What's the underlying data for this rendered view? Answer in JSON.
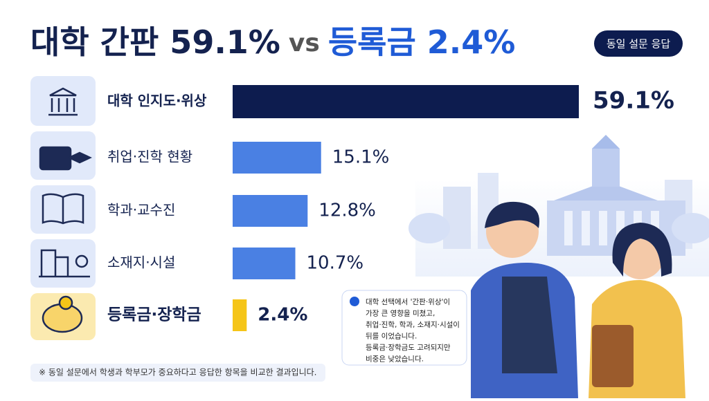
{
  "chart_data": {
    "type": "hbar",
    "title": [
      "대학 간판 59.1%",
      "vs",
      "등록금 2.4%"
    ],
    "badge": "동일 설문 응답",
    "categories": [
      "대학 인지도·위상",
      "취업·진학 현황",
      "학과·교수진",
      "소재지·시설",
      "등록금·장학금"
    ],
    "values": [
      59.1,
      15.1,
      12.8,
      10.7,
      2.4
    ],
    "value_labels": [
      "59.1%",
      "15.1%",
      "12.8%",
      "10.7%",
      "2.4%"
    ],
    "colors": [
      "#0d1c4f",
      "#4a80e3",
      "#4a80e3",
      "#4a80e3",
      "#f5c518"
    ],
    "note": [
      "대학 선택에서 '간판·위상'이",
      "가장 큰 영향을 미쳤고,",
      "취업·진학, 학과, 소재지·시설이",
      "뒤를 이었습니다.",
      "등록금·장학금도 고려되지만",
      "비중은 낮았습니다."
    ],
    "footnote": "※ 동일 설문에서 학생과 학부모가 중요하다고 응답한 항목을 비교한 결과입니다."
  }
}
